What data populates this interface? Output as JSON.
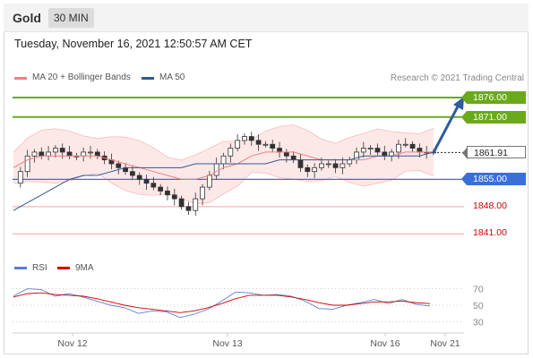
{
  "header": {
    "symbol": "Gold",
    "interval": "30 MIN"
  },
  "timestamp": "Tuesday, November 16, 2021 12:50:57 AM CET",
  "legend": {
    "ma20_bb": {
      "label": "MA 20 + Bollinger Bands",
      "color": "#f08080"
    },
    "ma50": {
      "label": "MA 50",
      "color": "#2f5b8f"
    }
  },
  "copyright": "Research © 2021 Trading Central",
  "rsi_legend": {
    "rsi": {
      "label": "RSI",
      "color": "#5b7fd6"
    },
    "ma9": {
      "label": "9MA",
      "color": "#d00000"
    }
  },
  "levels": [
    {
      "label": "1876.00",
      "value": 1876.0,
      "kind": "resistance",
      "color": "#6aaa1a"
    },
    {
      "label": "1871.00",
      "value": 1871.0,
      "kind": "resistance",
      "color": "#6aaa1a"
    },
    {
      "label": "1861.91",
      "value": 1861.91,
      "kind": "last",
      "color": "#222222"
    },
    {
      "label": "1855.00",
      "value": 1855.0,
      "kind": "pivot",
      "color": "#3a6fd8"
    },
    {
      "label": "1848.00",
      "value": 1848.0,
      "kind": "support",
      "color": "#d00000"
    },
    {
      "label": "1841.00",
      "value": 1841.0,
      "kind": "support",
      "color": "#d00000"
    }
  ],
  "rsi_ticks": [
    "70",
    "50",
    "30"
  ],
  "chart_data": {
    "type": "line",
    "title": "Gold",
    "xlabel": "",
    "ylabel": "",
    "ylim": [
      1836,
      1879
    ],
    "x_ticks": [
      "Nov 12",
      "Nov 13",
      "Nov 16",
      "Nov 21"
    ],
    "series": [
      {
        "name": "Gold",
        "values": [
          1854,
          1857,
          1861,
          1862,
          1861,
          1862,
          1863,
          1862,
          1861,
          1861,
          1862,
          1862,
          1861,
          1860,
          1859,
          1858,
          1857,
          1856,
          1855,
          1854,
          1853,
          1852,
          1851,
          1850,
          1848,
          1847,
          1850,
          1853,
          1856,
          1859,
          1861,
          1863,
          1865,
          1866,
          1865,
          1864,
          1864,
          1863,
          1862,
          1861,
          1860,
          1858,
          1857,
          1858,
          1859,
          1859,
          1858,
          1859,
          1860,
          1862,
          1863,
          1863,
          1862,
          1861,
          1862,
          1864,
          1864,
          1863,
          1862,
          1862,
          1862
        ]
      },
      {
        "name": "MA 20",
        "values": [
          1858,
          1860,
          1861,
          1861,
          1861,
          1861,
          1861,
          1860,
          1859,
          1858,
          1857,
          1856,
          1855,
          1855,
          1856,
          1858,
          1859,
          1861,
          1862,
          1862,
          1862,
          1861,
          1860,
          1860,
          1860,
          1860,
          1861,
          1861,
          1862,
          1862,
          1862
        ]
      },
      {
        "name": "MA 50",
        "values": [
          1847,
          1849,
          1851,
          1853,
          1855,
          1856,
          1856,
          1857,
          1858,
          1858,
          1858,
          1858,
          1858,
          1859,
          1859,
          1859,
          1859,
          1859,
          1859,
          1860,
          1860,
          1860,
          1860,
          1860,
          1860,
          1861,
          1861,
          1861,
          1861,
          1861,
          1862
        ]
      },
      {
        "name": "RSI",
        "values": [
          61,
          70,
          69,
          61,
          64,
          60,
          55,
          50,
          47,
          40,
          43,
          42,
          35,
          39,
          45,
          55,
          66,
          65,
          62,
          63,
          61,
          55,
          46,
          45,
          50,
          53,
          57,
          52,
          57,
          51,
          49
        ]
      },
      {
        "name": "9MA",
        "values": [
          60,
          64,
          65,
          63,
          62,
          61,
          58,
          54,
          50,
          47,
          45,
          43,
          41,
          43,
          47,
          52,
          58,
          62,
          62,
          62,
          60,
          57,
          53,
          50,
          50,
          52,
          54,
          54,
          55,
          53,
          52
        ]
      }
    ],
    "grid": false,
    "legend_position": "top-left"
  }
}
